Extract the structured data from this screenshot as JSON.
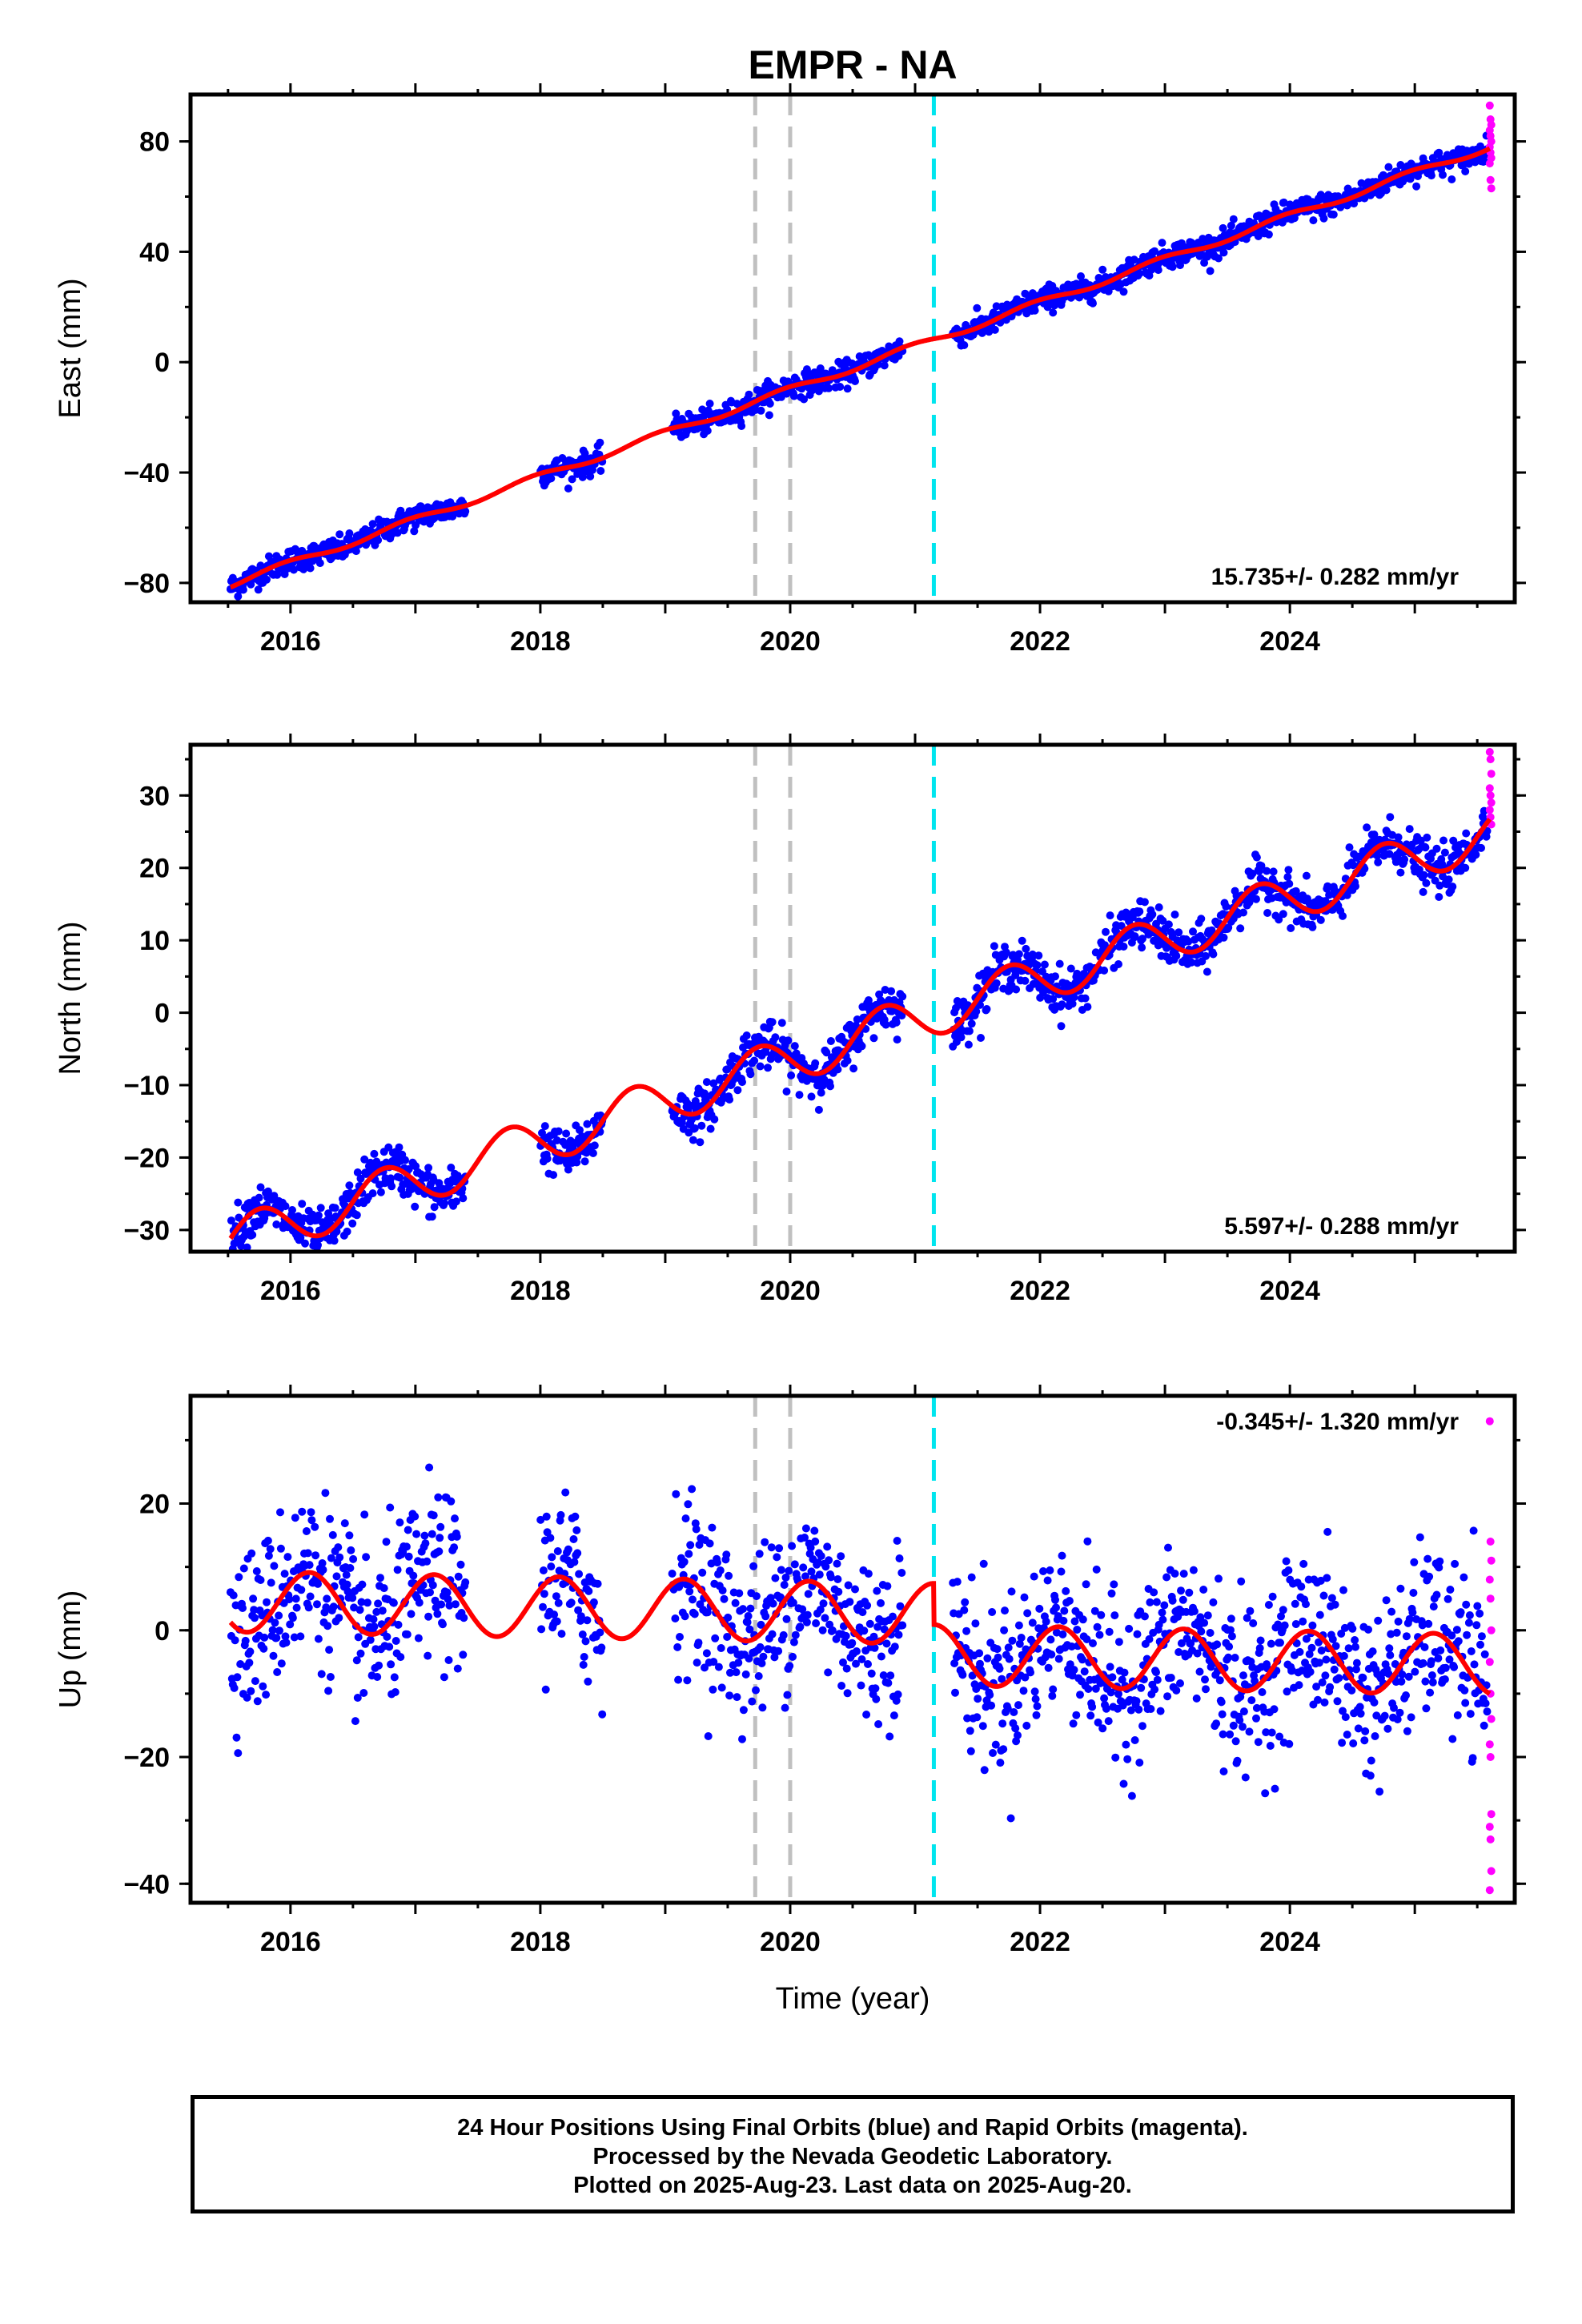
{
  "title": "EMPR - NA",
  "xlabel": "Time (year)",
  "footer": {
    "line1": "24 Hour Positions Using Final Orbits (blue) and Rapid Orbits (magenta).",
    "line2": "Processed by the Nevada Geodetic Laboratory.",
    "line3": "Plotted on 2025-Aug-23. Last data on 2025-Aug-20."
  },
  "colors": {
    "final": "#0000ff",
    "rapid": "#ff00ff",
    "model": "#ff0000",
    "equipment_change": "#c0c0c0",
    "earthquake": "#00e5ee"
  },
  "chart_data": [
    {
      "type": "scatter",
      "component": "east",
      "ylabel": "East (mm)",
      "xlim": [
        2015.2,
        2025.8
      ],
      "ylim": [
        -87,
        97
      ],
      "yticks": [
        -80,
        -40,
        0,
        40,
        80
      ],
      "xticks": [
        2016,
        2018,
        2020,
        2022,
        2024
      ],
      "rate_label": "15.735+/- 0.282 mm/yr",
      "offset_lines": {
        "equipment": [
          2019.72,
          2020.0
        ],
        "earthquake": [
          2021.15
        ]
      },
      "data_gaps": [
        [
          2017.4,
          2018.0
        ],
        [
          2018.5,
          2019.05
        ],
        [
          2020.9,
          2021.3
        ]
      ],
      "model": {
        "rate": 15.735,
        "ref_year": 2020.0,
        "value_at_ref": -10,
        "annual_amp": 1.2,
        "annual_phase": 0.3
      },
      "scatter": 2.2,
      "rapid_values": [
        93,
        88,
        86,
        84,
        82,
        80,
        78,
        76,
        74,
        72,
        66,
        63
      ]
    },
    {
      "type": "scatter",
      "component": "north",
      "ylabel": "North (mm)",
      "xlim": [
        2015.2,
        2025.8
      ],
      "ylim": [
        -33,
        37
      ],
      "yticks": [
        -30,
        -20,
        -10,
        0,
        10,
        20,
        30
      ],
      "xticks": [
        2016,
        2018,
        2020,
        2022,
        2024
      ],
      "rate_label": "5.597+/- 0.288 mm/yr",
      "offset_lines": {
        "equipment": [
          2019.72,
          2020.0
        ],
        "earthquake": [
          2021.15
        ]
      },
      "data_gaps": [
        [
          2017.4,
          2018.0
        ],
        [
          2018.5,
          2019.05
        ],
        [
          2020.9,
          2021.3
        ]
      ],
      "model": {
        "rate": 5.597,
        "ref_year": 2020.0,
        "value_at_ref": -6.5,
        "annual_amp": 3.2,
        "annual_phase": 0.5
      },
      "scatter": 1.6,
      "rapid_values": [
        36,
        35,
        33,
        31,
        30,
        29,
        28,
        27,
        26
      ]
    },
    {
      "type": "scatter",
      "component": "up",
      "ylabel": "Up (mm)",
      "xlim": [
        2015.2,
        2025.8
      ],
      "ylim": [
        -43,
        37
      ],
      "yticks": [
        -40,
        -20,
        0,
        20
      ],
      "xticks": [
        2016,
        2018,
        2020,
        2022,
        2024
      ],
      "rate_label": "-0.345+/- 1.320 mm/yr",
      "offset_lines": {
        "equipment": [
          2019.72,
          2020.0
        ],
        "earthquake": [
          2021.15
        ]
      },
      "data_gaps": [
        [
          2017.4,
          2018.0
        ],
        [
          2018.5,
          2019.05
        ],
        [
          2020.9,
          2021.3
        ]
      ],
      "model": {
        "rate": -0.345,
        "ref_year": 2020.0,
        "value_at_ref": 3.0,
        "annual_amp": 4.8,
        "annual_phase": 0.1,
        "step_at": 2021.15,
        "step": -6.5
      },
      "scatter": 6.5,
      "rapid_values": [
        33,
        14,
        11,
        8,
        5,
        0,
        -5,
        -10,
        -14,
        -18,
        -20,
        -29,
        -31,
        -33,
        -38,
        -41
      ]
    }
  ]
}
